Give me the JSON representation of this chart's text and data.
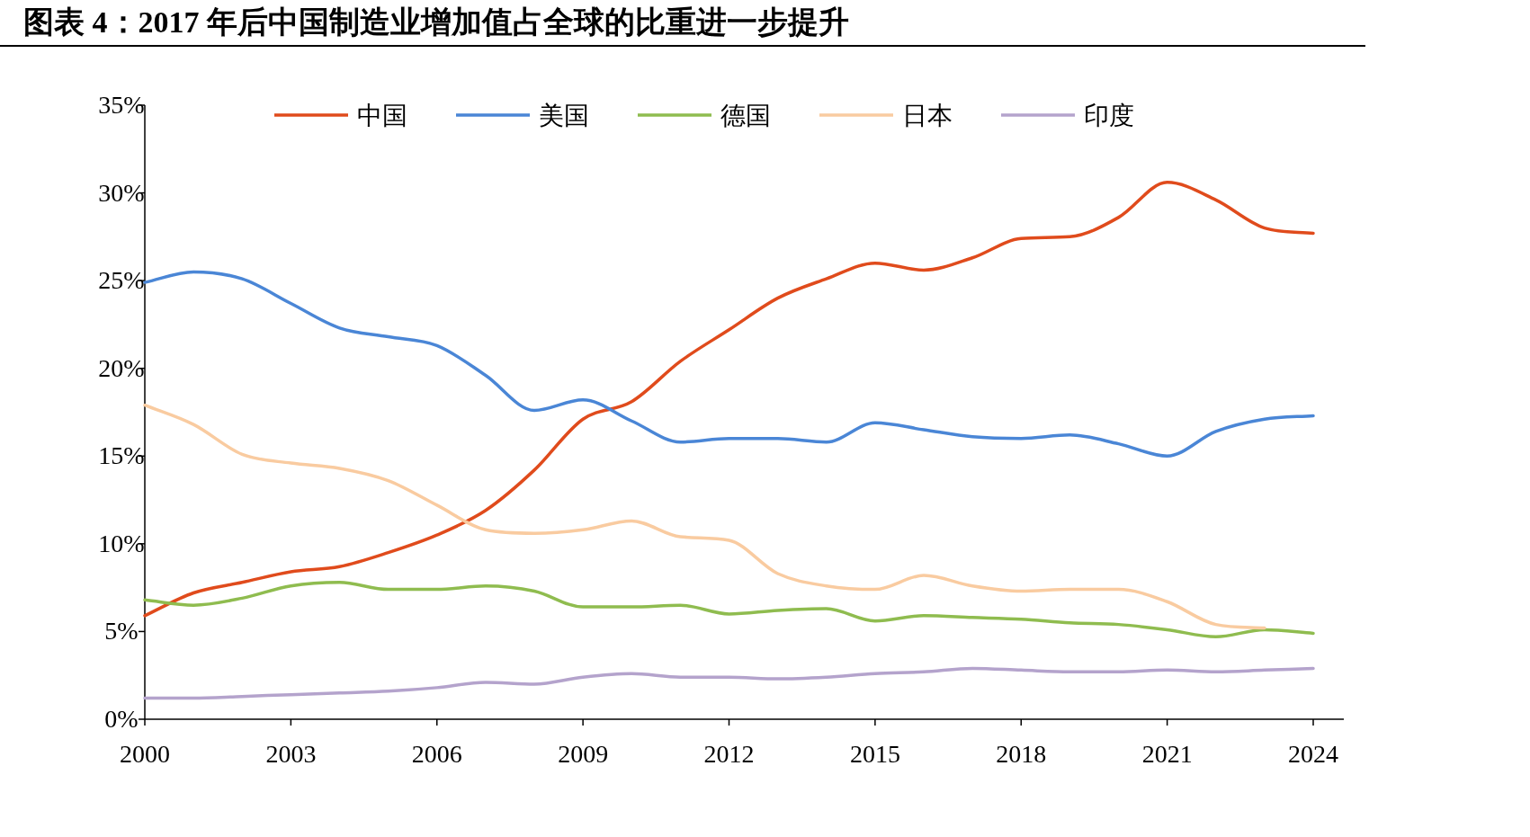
{
  "chart_data": {
    "type": "line",
    "title": "图表 4：2017 年后中国制造业增加值占全球的比重进一步提升",
    "categories": [
      "2000",
      null,
      null,
      "2003",
      null,
      null,
      "2006",
      null,
      null,
      "2009",
      null,
      null,
      "2012",
      null,
      null,
      "2015",
      null,
      null,
      "2018",
      null,
      null,
      "2021",
      null,
      null,
      "2024"
    ],
    "series": [
      {
        "name": "中国",
        "color": "#e04b1c",
        "values": [
          5.9,
          7.2,
          7.8,
          8.4,
          8.7,
          9.5,
          10.5,
          11.9,
          14.2,
          17.1,
          18.1,
          20.4,
          22.2,
          24.0,
          25.1,
          26.0,
          25.6,
          26.3,
          27.4,
          27.5,
          28.6,
          30.6,
          29.6,
          28.0,
          27.7
        ]
      },
      {
        "name": "美国",
        "color": "#4a86d6",
        "values": [
          24.9,
          25.5,
          25.1,
          23.7,
          22.3,
          21.8,
          21.3,
          19.6,
          17.6,
          18.2,
          17.0,
          15.8,
          16.0,
          16.0,
          15.8,
          16.9,
          16.5,
          16.1,
          16.0,
          16.2,
          15.7,
          15.0,
          16.4,
          17.1,
          17.3
        ]
      },
      {
        "name": "德国",
        "color": "#8fbc4f",
        "values": [
          6.8,
          6.5,
          6.9,
          7.6,
          7.8,
          7.4,
          7.4,
          7.6,
          7.3,
          6.4,
          6.4,
          6.5,
          6.0,
          6.2,
          6.3,
          5.6,
          5.9,
          5.8,
          5.7,
          5.5,
          5.4,
          5.1,
          4.7,
          5.1,
          4.9
        ]
      },
      {
        "name": "日本",
        "color": "#f9cba0",
        "values": [
          17.9,
          16.8,
          15.1,
          14.6,
          14.3,
          13.6,
          12.2,
          10.8,
          10.6,
          10.8,
          11.3,
          10.4,
          10.2,
          8.3,
          7.6,
          7.4,
          8.2,
          7.6,
          7.3,
          7.4,
          7.4,
          6.7,
          5.4,
          5.2,
          null
        ]
      },
      {
        "name": "印度",
        "color": "#b4a3cc",
        "values": [
          1.2,
          1.2,
          1.3,
          1.4,
          1.5,
          1.6,
          1.8,
          2.1,
          2.0,
          2.4,
          2.6,
          2.4,
          2.4,
          2.3,
          2.4,
          2.6,
          2.7,
          2.9,
          2.8,
          2.7,
          2.7,
          2.8,
          2.7,
          2.8,
          2.9
        ]
      }
    ],
    "ylim": [
      0,
      35
    ],
    "yticks": [
      {
        "value": 0,
        "label": "0%"
      },
      {
        "value": 5,
        "label": "5%"
      },
      {
        "value": 10,
        "label": "10%"
      },
      {
        "value": 15,
        "label": "15%"
      },
      {
        "value": 20,
        "label": "20%"
      },
      {
        "value": 25,
        "label": "25%"
      },
      {
        "value": 30,
        "label": "30%"
      },
      {
        "value": 35,
        "label": "35%"
      }
    ],
    "legend": "top",
    "grid": false
  }
}
